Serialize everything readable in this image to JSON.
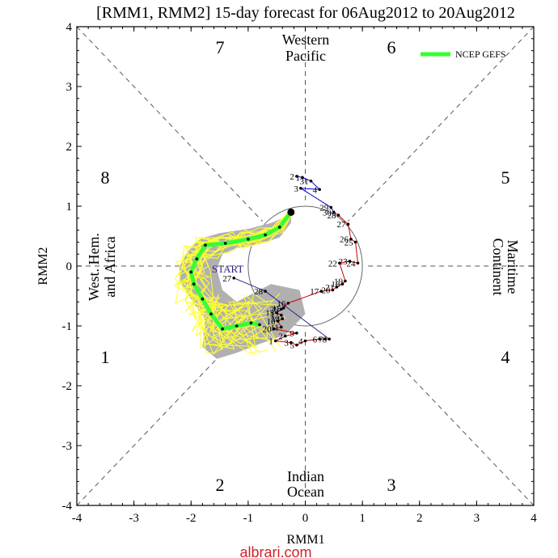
{
  "chart_data": {
    "type": "scatter",
    "title": "[RMM1, RMM2] 15-day forecast for 06Aug2012 to 20Aug2012",
    "xlabel": "RMM1",
    "ylabel": "RMM2",
    "xlim": [
      -4,
      4
    ],
    "ylim": [
      -4,
      4
    ],
    "x_ticks": [
      "-4",
      "-3",
      "-2",
      "-1",
      "0",
      "1",
      "2",
      "3",
      "4"
    ],
    "y_ticks": [
      "-4",
      "-3",
      "-2",
      "-1",
      "0",
      "1",
      "2",
      "3",
      "4"
    ],
    "unit_circle_radius": 1,
    "phases": [
      "1",
      "2",
      "3",
      "4",
      "5",
      "6",
      "7",
      "8"
    ],
    "regions": {
      "top": [
        "Western",
        "Pacific"
      ],
      "bottom": [
        "Indian",
        "Ocean"
      ],
      "left": [
        "West. Hem.",
        "and Africa"
      ],
      "right": [
        "Maritime",
        "Continent"
      ]
    },
    "start_label": "START",
    "legend": {
      "label": "NCEP GEFS",
      "position": "top-right",
      "color": "#33ff33"
    },
    "colors": {
      "observed_early": "#0000cc",
      "observed_mid": "#cc0000",
      "observed_late": "#3b1f8c",
      "ensemble": "#ffff33",
      "spread": "#b0b0b0",
      "forecast_mean": "#33ff33"
    },
    "observed": [
      {
        "x": -0.15,
        "y": 1.5,
        "label": "2"
      },
      {
        "x": -0.05,
        "y": 1.48,
        "label": "1"
      },
      {
        "x": 0.1,
        "y": 1.42,
        "label": "31"
      },
      {
        "x": 0.25,
        "y": 1.28,
        "label": "4"
      },
      {
        "x": -0.08,
        "y": 1.3,
        "label": "3"
      },
      {
        "x": 0.45,
        "y": 0.98,
        "label": "29"
      },
      {
        "x": 0.5,
        "y": 0.9,
        "label": "30"
      },
      {
        "x": 0.58,
        "y": 0.85,
        "label": "28"
      },
      {
        "x": 0.75,
        "y": 0.7,
        "label": "27"
      },
      {
        "x": 0.8,
        "y": 0.45,
        "label": "26"
      },
      {
        "x": 0.88,
        "y": 0.4,
        "label": "25"
      },
      {
        "x": 0.92,
        "y": 0.05,
        "label": "24"
      },
      {
        "x": 0.78,
        "y": 0.08,
        "label": "23"
      },
      {
        "x": 0.6,
        "y": 0.05,
        "label": "22"
      },
      {
        "x": 0.7,
        "y": -0.25,
        "label": "19"
      },
      {
        "x": 0.65,
        "y": -0.3,
        "label": "18"
      },
      {
        "x": 0.55,
        "y": -0.35,
        "label": "21"
      },
      {
        "x": 0.48,
        "y": -0.4,
        "label": "20"
      },
      {
        "x": 0.28,
        "y": -0.42,
        "label": "17"
      },
      {
        "x": -0.3,
        "y": -0.62,
        "label": "16"
      },
      {
        "x": -0.38,
        "y": -0.7,
        "label": "15"
      },
      {
        "x": -0.42,
        "y": -0.72,
        "label": "29"
      },
      {
        "x": -0.5,
        "y": -0.78,
        "label": "13"
      },
      {
        "x": -0.42,
        "y": -0.82,
        "label": "12"
      },
      {
        "x": -0.4,
        "y": -0.88,
        "label": "14"
      },
      {
        "x": -0.48,
        "y": -0.92,
        "label": "10"
      },
      {
        "x": -0.42,
        "y": -1.02,
        "label": "11"
      },
      {
        "x": -0.55,
        "y": -1.05,
        "label": "20"
      },
      {
        "x": -0.15,
        "y": -1.12,
        "label": "9"
      },
      {
        "x": -0.35,
        "y": -1.17,
        "label": "2"
      },
      {
        "x": -0.52,
        "y": -1.25,
        "label": "1"
      },
      {
        "x": -0.25,
        "y": -1.28,
        "label": "3"
      },
      {
        "x": -0.15,
        "y": -1.32,
        "label": "5"
      },
      {
        "x": 0.0,
        "y": -1.25,
        "label": "4"
      },
      {
        "x": 0.25,
        "y": -1.22,
        "label": "6"
      },
      {
        "x": 0.35,
        "y": -1.22,
        "label": "7"
      },
      {
        "x": 0.42,
        "y": -1.22,
        "label": "8"
      },
      {
        "x": -0.7,
        "y": -0.42,
        "label": "28"
      },
      {
        "x": -1.25,
        "y": -0.2,
        "label": "27"
      }
    ],
    "forecast_mean": [
      {
        "x": -0.25,
        "y": 0.9
      },
      {
        "x": -0.45,
        "y": 0.65
      },
      {
        "x": -0.7,
        "y": 0.52
      },
      {
        "x": -1.0,
        "y": 0.45
      },
      {
        "x": -1.4,
        "y": 0.38
      },
      {
        "x": -1.75,
        "y": 0.35
      },
      {
        "x": -1.9,
        "y": 0.12
      },
      {
        "x": -2.0,
        "y": -0.1
      },
      {
        "x": -1.95,
        "y": -0.3
      },
      {
        "x": -1.8,
        "y": -0.55
      },
      {
        "x": -1.65,
        "y": -0.8
      },
      {
        "x": -1.45,
        "y": -1.05
      },
      {
        "x": -1.2,
        "y": -1.0
      },
      {
        "x": -0.95,
        "y": -0.95
      },
      {
        "x": -0.8,
        "y": -0.98
      }
    ],
    "spread": [
      [
        -0.25,
        0.95
      ],
      [
        -0.4,
        0.8
      ],
      [
        -0.6,
        0.72
      ],
      [
        -1.0,
        0.62
      ],
      [
        -1.5,
        0.55
      ],
      [
        -1.85,
        0.45
      ],
      [
        -2.05,
        0.25
      ],
      [
        -2.2,
        0.0
      ],
      [
        -2.2,
        -0.25
      ],
      [
        -2.0,
        -0.55
      ],
      [
        -1.75,
        -0.9
      ],
      [
        -1.8,
        -1.35
      ],
      [
        -1.55,
        -1.55
      ],
      [
        -1.2,
        -1.45
      ],
      [
        -0.8,
        -1.3
      ],
      [
        -0.35,
        -1.15
      ],
      [
        0.0,
        -0.8
      ],
      [
        -0.1,
        -0.4
      ],
      [
        -0.6,
        -0.3
      ],
      [
        -1.2,
        -0.6
      ],
      [
        -1.45,
        -0.4
      ],
      [
        -1.55,
        -0.05
      ],
      [
        -1.45,
        0.2
      ],
      [
        -1.2,
        0.3
      ],
      [
        -0.75,
        0.38
      ],
      [
        -0.45,
        0.48
      ],
      [
        -0.25,
        0.72
      ]
    ]
  }
}
